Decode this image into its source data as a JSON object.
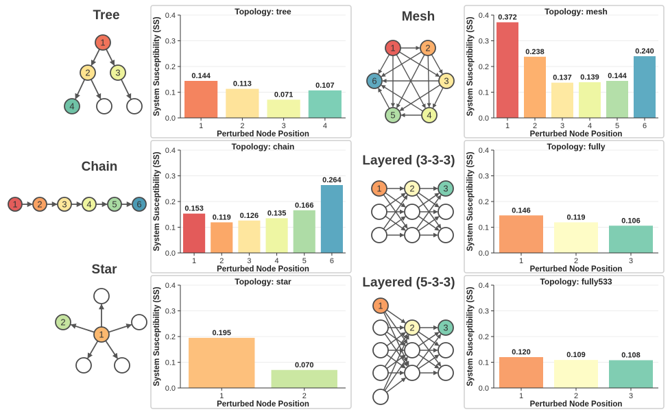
{
  "diagrams": {
    "tree": {
      "title": "Tree",
      "nodes": [
        "1",
        "2",
        "3",
        "4"
      ],
      "node_colors": [
        "#F0735A",
        "#FFE38F",
        "#EEF39C",
        "#6FC2A6"
      ]
    },
    "mesh": {
      "title": "Mesh",
      "nodes": [
        "1",
        "2",
        "3",
        "4",
        "5",
        "6"
      ],
      "node_colors": [
        "#E8605B",
        "#FCAF6A",
        "#FFEA9C",
        "#EEF59E",
        "#B2DEA6",
        "#5FA9C0"
      ]
    },
    "chain": {
      "title": "Chain",
      "nodes": [
        "1",
        "2",
        "3",
        "4",
        "5",
        "6"
      ],
      "node_colors": [
        "#E35D5B",
        "#F9A263",
        "#FFE79A",
        "#EFF59F",
        "#A9DBA2",
        "#4C9BB5"
      ]
    },
    "layered333": {
      "title": "Layered (3-3-3)",
      "nodes": [
        "1",
        "2",
        "3"
      ],
      "node_colors": [
        "#F99F62",
        "#FFF8BE",
        "#7ECDB0"
      ]
    },
    "star": {
      "title": "Star",
      "nodes": [
        "1",
        "2"
      ],
      "node_colors": [
        "#FBB86F",
        "#C6E4A0"
      ]
    },
    "layered533": {
      "title": "Layered (5-3-3)",
      "nodes": [
        "1",
        "2",
        "3"
      ],
      "node_colors": [
        "#F99F62",
        "#FFF8BE",
        "#7ECDB0"
      ]
    }
  },
  "chart_data": [
    {
      "type": "bar",
      "title": "Topology: tree",
      "xlabel": "Perturbed Node Position",
      "ylabel": "System Susceptibility (SS)",
      "categories": [
        "1",
        "2",
        "3",
        "4"
      ],
      "values": [
        0.144,
        0.113,
        0.071,
        0.107
      ],
      "value_labels": [
        "0.144",
        "0.113",
        "0.071",
        "0.107"
      ],
      "ylim": [
        0,
        0.4
      ],
      "yticks": [
        0,
        0.1,
        0.2,
        0.3,
        0.4
      ],
      "ytick_labels": [
        "0.0",
        "0.1",
        "0.2",
        "0.3",
        "0.4"
      ],
      "colors": [
        "#F4845F",
        "#FEE39A",
        "#F2F6A6",
        "#7DCFB6"
      ],
      "grid": true
    },
    {
      "type": "bar",
      "title": "Topology: mesh",
      "xlabel": "Perturbed Node Position",
      "ylabel": "System Susceptibility (SS)",
      "categories": [
        "1",
        "2",
        "3",
        "4",
        "5",
        "6"
      ],
      "values": [
        0.372,
        0.238,
        0.137,
        0.139,
        0.144,
        0.24
      ],
      "value_labels": [
        "0.372",
        "0.238",
        "0.137",
        "0.139",
        "0.144",
        "0.240"
      ],
      "ylim": [
        0,
        0.4
      ],
      "yticks": [
        0,
        0.1,
        0.2,
        0.3,
        0.4
      ],
      "ytick_labels": [
        "0.0",
        "0.1",
        "0.2",
        "0.3",
        "0.4"
      ],
      "colors": [
        "#E6635F",
        "#FDB16E",
        "#FEE9A2",
        "#EEF6A3",
        "#B4DFA9",
        "#5EABC2"
      ],
      "grid": true
    },
    {
      "type": "bar",
      "title": "Topology: chain",
      "xlabel": "Perturbed Node Position",
      "ylabel": "System Susceptibility (SS)",
      "categories": [
        "1",
        "2",
        "3",
        "4",
        "5",
        "6"
      ],
      "values": [
        0.153,
        0.119,
        0.126,
        0.135,
        0.166,
        0.264
      ],
      "value_labels": [
        "0.153",
        "0.119",
        "0.126",
        "0.135",
        "0.166",
        "0.264"
      ],
      "ylim": [
        0,
        0.4
      ],
      "yticks": [
        0,
        0.1,
        0.2,
        0.3,
        0.4
      ],
      "ytick_labels": [
        "0.0",
        "0.1",
        "0.2",
        "0.3",
        "0.4"
      ],
      "colors": [
        "#E35B5A",
        "#FBA868",
        "#FEE69E",
        "#EEF6A3",
        "#AEDCA6",
        "#5BA8C1"
      ],
      "grid": true
    },
    {
      "type": "bar",
      "title": "Topology: fully",
      "xlabel": "Perturbed Node Position",
      "ylabel": "System Susceptibility (SS)",
      "categories": [
        "1",
        "2",
        "3"
      ],
      "values": [
        0.146,
        0.119,
        0.106
      ],
      "value_labels": [
        "0.146",
        "0.119",
        "0.106"
      ],
      "ylim": [
        0,
        0.4
      ],
      "yticks": [
        0,
        0.1,
        0.2,
        0.3,
        0.4
      ],
      "ytick_labels": [
        "0.0",
        "0.1",
        "0.2",
        "0.3",
        "0.4"
      ],
      "colors": [
        "#F9A06B",
        "#FEFCC6",
        "#80CDB2"
      ],
      "grid": true
    },
    {
      "type": "bar",
      "title": "Topology: star",
      "xlabel": "Perturbed Node Position",
      "ylabel": "System Susceptibility (SS)",
      "categories": [
        "1",
        "2"
      ],
      "values": [
        0.195,
        0.07
      ],
      "value_labels": [
        "0.195",
        "0.070"
      ],
      "ylim": [
        0,
        0.4
      ],
      "yticks": [
        0,
        0.1,
        0.2,
        0.3,
        0.4
      ],
      "ytick_labels": [
        "0.0",
        "0.1",
        "0.2",
        "0.3",
        "0.4"
      ],
      "colors": [
        "#FDC07C",
        "#CBE7A2"
      ],
      "grid": true
    },
    {
      "type": "bar",
      "title": "Topology: fully533",
      "xlabel": "Perturbed Node Position",
      "ylabel": "System Susceptibility (SS)",
      "categories": [
        "1",
        "2",
        "3"
      ],
      "values": [
        0.12,
        0.109,
        0.108
      ],
      "value_labels": [
        "0.120",
        "0.109",
        "0.108"
      ],
      "ylim": [
        0,
        0.4
      ],
      "yticks": [
        0,
        0.1,
        0.2,
        0.3,
        0.4
      ],
      "ytick_labels": [
        "0.0",
        "0.1",
        "0.2",
        "0.3",
        "0.4"
      ],
      "colors": [
        "#F9A06B",
        "#FEFCC6",
        "#80CDB2"
      ],
      "grid": true
    }
  ]
}
